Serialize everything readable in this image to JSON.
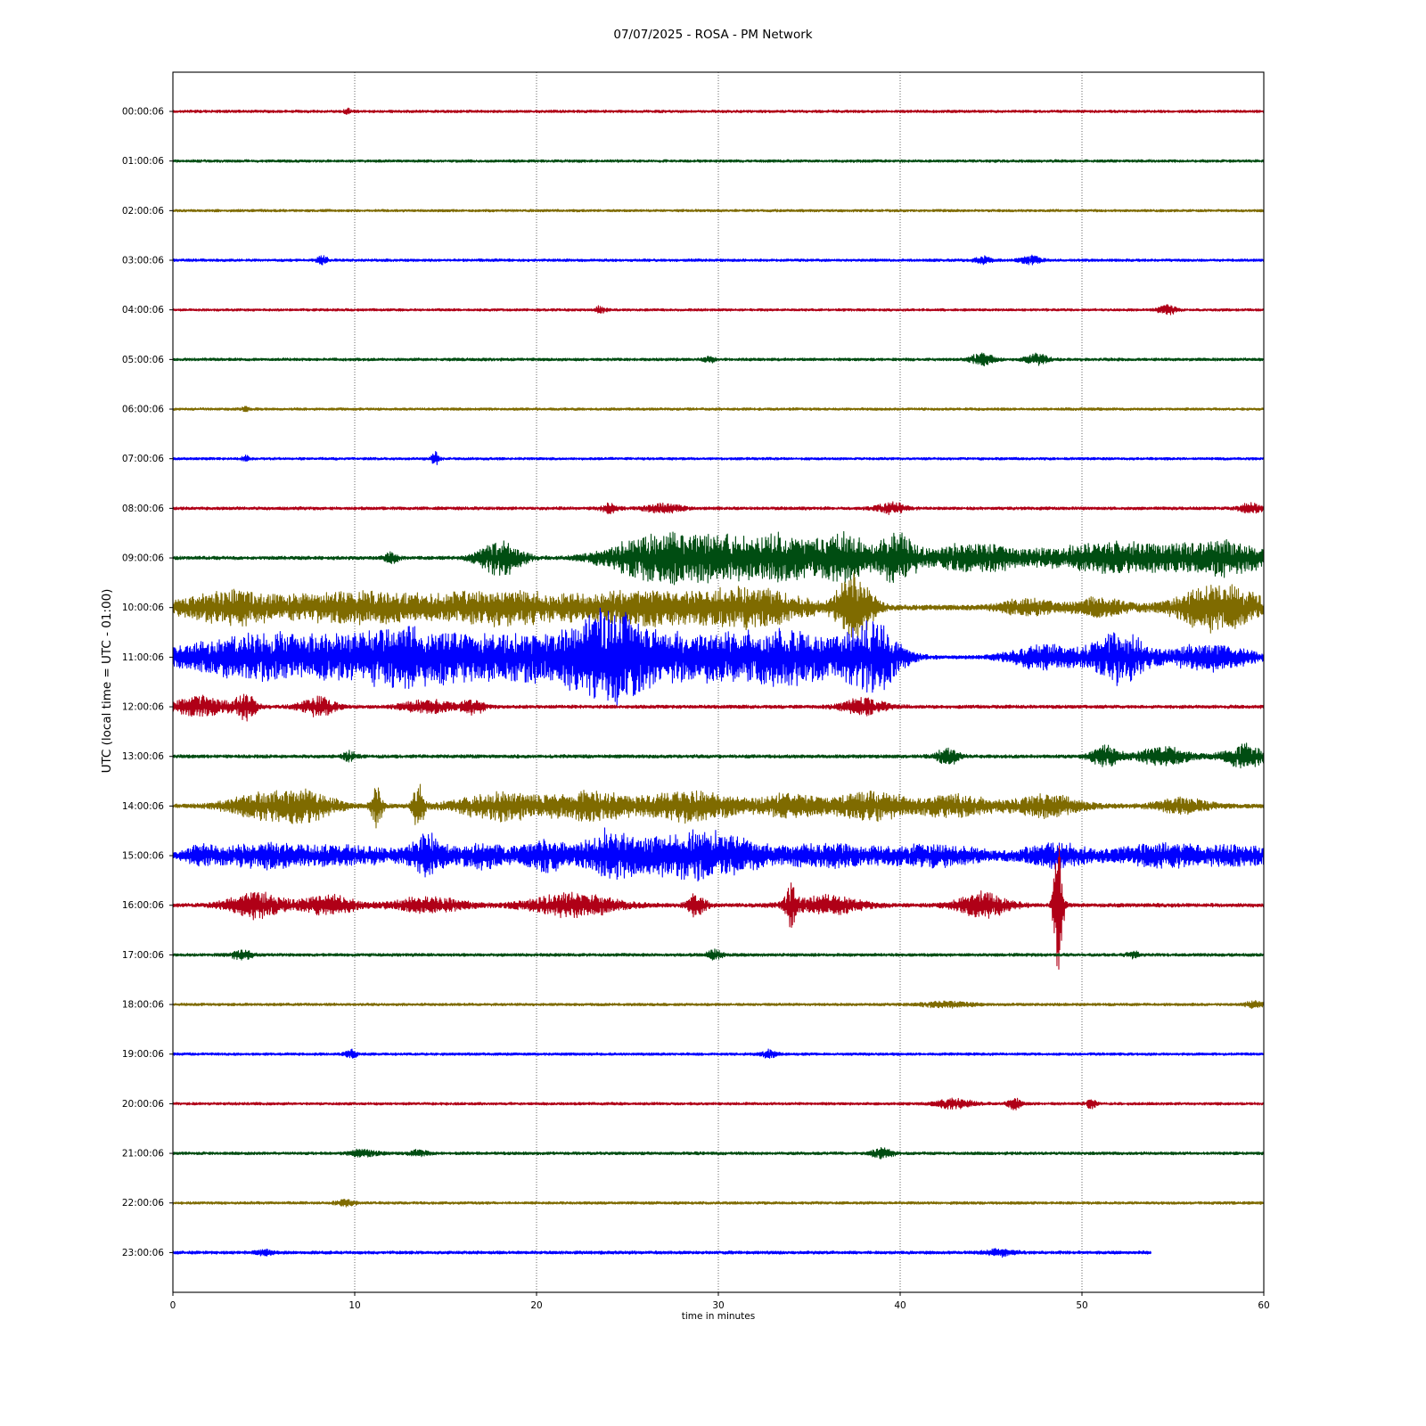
{
  "chart_data": {
    "type": "line",
    "chart_kind": "helicorder",
    "title": "07/07/2025 - ROSA - PM Network",
    "xlabel": "time in minutes",
    "ylabel": "UTC (local time = UTC - 01:00)",
    "xlim": [
      0,
      60
    ],
    "x_ticks": [
      "0",
      "10",
      "20",
      "30",
      "40",
      "50",
      "60"
    ],
    "grid": "vertical dotted at every 10 minutes",
    "trace_colors": [
      "#b00017",
      "#004d12",
      "#7f6b00",
      "#0000ff"
    ],
    "traces": [
      {
        "label": "00:00:06",
        "color": "#b00017",
        "end_minute": 60,
        "noise": 0.16,
        "bursts": [
          {
            "t": 9.6,
            "amp": 0.3,
            "w": 0.2
          }
        ]
      },
      {
        "label": "01:00:06",
        "color": "#004d12",
        "end_minute": 60,
        "noise": 0.16,
        "bursts": []
      },
      {
        "label": "02:00:06",
        "color": "#7f6b00",
        "end_minute": 60,
        "noise": 0.15,
        "bursts": []
      },
      {
        "label": "03:00:06",
        "color": "#0000ff",
        "end_minute": 60,
        "noise": 0.16,
        "bursts": [
          {
            "t": 8.2,
            "amp": 0.5,
            "w": 0.3
          },
          {
            "t": 44.5,
            "amp": 0.4,
            "w": 0.5
          },
          {
            "t": 47.2,
            "amp": 0.45,
            "w": 0.6
          }
        ]
      },
      {
        "label": "04:00:06",
        "color": "#b00017",
        "end_minute": 60,
        "noise": 0.15,
        "bursts": [
          {
            "t": 23.5,
            "amp": 0.35,
            "w": 0.3
          },
          {
            "t": 54.7,
            "amp": 0.55,
            "w": 0.5
          }
        ]
      },
      {
        "label": "05:00:06",
        "color": "#004d12",
        "end_minute": 60,
        "noise": 0.17,
        "bursts": [
          {
            "t": 44.5,
            "amp": 0.7,
            "w": 0.6
          },
          {
            "t": 47.5,
            "amp": 0.6,
            "w": 0.6
          },
          {
            "t": 29.5,
            "amp": 0.3,
            "w": 0.3
          }
        ]
      },
      {
        "label": "06:00:06",
        "color": "#7f6b00",
        "end_minute": 60,
        "noise": 0.15,
        "bursts": [
          {
            "t": 4.0,
            "amp": 0.3,
            "w": 0.2
          }
        ]
      },
      {
        "label": "07:00:06",
        "color": "#0000ff",
        "end_minute": 60,
        "noise": 0.15,
        "bursts": [
          {
            "t": 14.4,
            "amp": 0.9,
            "w": 0.2
          },
          {
            "t": 4.0,
            "amp": 0.35,
            "w": 0.2
          }
        ]
      },
      {
        "label": "08:00:06",
        "color": "#b00017",
        "end_minute": 60,
        "noise": 0.18,
        "bursts": [
          {
            "t": 24.0,
            "amp": 0.5,
            "w": 0.5
          },
          {
            "t": 27.0,
            "amp": 0.5,
            "w": 1.0
          },
          {
            "t": 39.5,
            "amp": 0.6,
            "w": 0.8
          },
          {
            "t": 59.3,
            "amp": 0.6,
            "w": 0.6
          }
        ]
      },
      {
        "label": "09:00:06",
        "color": "#004d12",
        "end_minute": 60,
        "noise": 0.2,
        "bursts": [
          {
            "t": 12.0,
            "amp": 0.6,
            "w": 0.4
          },
          {
            "t": 18.0,
            "amp": 2.0,
            "w": 1.2
          },
          {
            "t": 26.0,
            "amp": 1.8,
            "w": 2.5
          },
          {
            "t": 30.0,
            "amp": 2.6,
            "w": 3.5
          },
          {
            "t": 34.0,
            "amp": 1.8,
            "w": 2.0
          },
          {
            "t": 37.0,
            "amp": 2.6,
            "w": 1.5
          },
          {
            "t": 39.8,
            "amp": 3.0,
            "w": 1.0
          },
          {
            "t": 44.0,
            "amp": 1.6,
            "w": 3.0
          },
          {
            "t": 52.0,
            "amp": 1.8,
            "w": 4.0
          },
          {
            "t": 58.0,
            "amp": 1.8,
            "w": 2.5
          }
        ]
      },
      {
        "label": "10:00:06",
        "color": "#7f6b00",
        "end_minute": 60,
        "noise": 0.3,
        "bursts": [
          {
            "t": 3.0,
            "amp": 1.8,
            "w": 3.0
          },
          {
            "t": 10.0,
            "amp": 1.8,
            "w": 4.0
          },
          {
            "t": 18.0,
            "amp": 1.8,
            "w": 4.0
          },
          {
            "t": 26.0,
            "amp": 1.8,
            "w": 4.0
          },
          {
            "t": 32.0,
            "amp": 2.0,
            "w": 3.0
          },
          {
            "t": 37.5,
            "amp": 4.0,
            "w": 1.0
          },
          {
            "t": 47.0,
            "amp": 0.9,
            "w": 1.5
          },
          {
            "t": 51.0,
            "amp": 1.0,
            "w": 1.5
          },
          {
            "t": 57.5,
            "amp": 2.6,
            "w": 2.5
          }
        ]
      },
      {
        "label": "11:00:06",
        "color": "#0000ff",
        "end_minute": 60,
        "noise": 0.2,
        "bursts": [
          {
            "t": 5.0,
            "amp": 2.6,
            "w": 5.0
          },
          {
            "t": 13.0,
            "amp": 3.2,
            "w": 4.0
          },
          {
            "t": 20.0,
            "amp": 2.6,
            "w": 4.0
          },
          {
            "t": 24.0,
            "amp": 3.4,
            "w": 2.0
          },
          {
            "t": 28.0,
            "amp": 2.6,
            "w": 4.0
          },
          {
            "t": 34.0,
            "amp": 2.8,
            "w": 3.5
          },
          {
            "t": 38.5,
            "amp": 3.8,
            "w": 1.5
          },
          {
            "t": 48.0,
            "amp": 1.4,
            "w": 2.0
          },
          {
            "t": 52.0,
            "amp": 3.2,
            "w": 1.5
          },
          {
            "t": 57.0,
            "amp": 1.5,
            "w": 2.5
          }
        ]
      },
      {
        "label": "12:00:06",
        "color": "#b00017",
        "end_minute": 60,
        "noise": 0.2,
        "bursts": [
          {
            "t": 1.5,
            "amp": 1.2,
            "w": 1.5
          },
          {
            "t": 4.0,
            "amp": 1.4,
            "w": 0.6
          },
          {
            "t": 8.0,
            "amp": 1.1,
            "w": 1.0
          },
          {
            "t": 14.0,
            "amp": 0.7,
            "w": 1.5
          },
          {
            "t": 16.5,
            "amp": 0.8,
            "w": 0.6
          },
          {
            "t": 38.0,
            "amp": 1.0,
            "w": 1.2
          }
        ]
      },
      {
        "label": "13:00:06",
        "color": "#004d12",
        "end_minute": 60,
        "noise": 0.2,
        "bursts": [
          {
            "t": 9.7,
            "amp": 0.5,
            "w": 0.4
          },
          {
            "t": 42.6,
            "amp": 1.0,
            "w": 0.6
          },
          {
            "t": 51.3,
            "amp": 1.2,
            "w": 0.8
          },
          {
            "t": 54.5,
            "amp": 1.0,
            "w": 1.5
          },
          {
            "t": 59.0,
            "amp": 1.3,
            "w": 1.2
          }
        ]
      },
      {
        "label": "14:00:06",
        "color": "#7f6b00",
        "end_minute": 60,
        "noise": 0.25,
        "bursts": [
          {
            "t": 5.0,
            "amp": 1.4,
            "w": 2.0
          },
          {
            "t": 7.5,
            "amp": 1.5,
            "w": 1.5
          },
          {
            "t": 11.2,
            "amp": 2.4,
            "w": 0.3
          },
          {
            "t": 13.5,
            "amp": 2.8,
            "w": 0.3
          },
          {
            "t": 18.0,
            "amp": 1.5,
            "w": 2.5
          },
          {
            "t": 23.0,
            "amp": 1.5,
            "w": 2.5
          },
          {
            "t": 28.5,
            "amp": 1.8,
            "w": 2.5
          },
          {
            "t": 34.0,
            "amp": 1.3,
            "w": 2.0
          },
          {
            "t": 38.5,
            "amp": 1.7,
            "w": 2.0
          },
          {
            "t": 43.0,
            "amp": 1.3,
            "w": 2.0
          },
          {
            "t": 48.0,
            "amp": 1.2,
            "w": 2.0
          },
          {
            "t": 55.5,
            "amp": 0.8,
            "w": 1.5
          }
        ]
      },
      {
        "label": "15:00:06",
        "color": "#0000ff",
        "end_minute": 60,
        "noise": 0.22,
        "bursts": [
          {
            "t": 1.5,
            "amp": 0.8,
            "w": 1.0
          },
          {
            "t": 5.0,
            "amp": 1.3,
            "w": 3.0
          },
          {
            "t": 10.0,
            "amp": 1.0,
            "w": 3.0
          },
          {
            "t": 14.0,
            "amp": 2.3,
            "w": 1.0
          },
          {
            "t": 17.0,
            "amp": 1.5,
            "w": 1.5
          },
          {
            "t": 20.5,
            "amp": 1.8,
            "w": 1.5
          },
          {
            "t": 24.0,
            "amp": 2.8,
            "w": 1.5
          },
          {
            "t": 28.0,
            "amp": 2.6,
            "w": 2.5
          },
          {
            "t": 31.0,
            "amp": 1.5,
            "w": 2.0
          },
          {
            "t": 36.0,
            "amp": 1.3,
            "w": 3.0
          },
          {
            "t": 42.0,
            "amp": 1.2,
            "w": 3.0
          },
          {
            "t": 48.5,
            "amp": 1.3,
            "w": 2.0
          },
          {
            "t": 54.5,
            "amp": 1.3,
            "w": 3.0
          },
          {
            "t": 59.0,
            "amp": 1.0,
            "w": 2.0
          }
        ]
      },
      {
        "label": "16:00:06",
        "color": "#b00017",
        "end_minute": 60,
        "noise": 0.22,
        "bursts": [
          {
            "t": 4.5,
            "amp": 1.6,
            "w": 1.5
          },
          {
            "t": 8.5,
            "amp": 1.2,
            "w": 1.5
          },
          {
            "t": 14.0,
            "amp": 0.9,
            "w": 2.0
          },
          {
            "t": 22.0,
            "amp": 1.3,
            "w": 2.5
          },
          {
            "t": 28.8,
            "amp": 1.3,
            "w": 0.5
          },
          {
            "t": 34.0,
            "amp": 2.5,
            "w": 0.3
          },
          {
            "t": 36.0,
            "amp": 1.0,
            "w": 2.0
          },
          {
            "t": 44.5,
            "amp": 1.4,
            "w": 1.5
          },
          {
            "t": 48.7,
            "amp": 9.2,
            "w": 0.25
          }
        ]
      },
      {
        "label": "17:00:06",
        "color": "#004d12",
        "end_minute": 60,
        "noise": 0.18,
        "bursts": [
          {
            "t": 3.8,
            "amp": 0.5,
            "w": 0.6
          },
          {
            "t": 29.8,
            "amp": 0.55,
            "w": 0.4
          },
          {
            "t": 52.8,
            "amp": 0.4,
            "w": 0.3
          }
        ]
      },
      {
        "label": "18:00:06",
        "color": "#7f6b00",
        "end_minute": 60,
        "noise": 0.16,
        "bursts": [
          {
            "t": 42.5,
            "amp": 0.3,
            "w": 1.5
          },
          {
            "t": 59.5,
            "amp": 0.35,
            "w": 0.5
          }
        ]
      },
      {
        "label": "19:00:06",
        "color": "#0000ff",
        "end_minute": 60,
        "noise": 0.16,
        "bursts": [
          {
            "t": 9.8,
            "amp": 0.45,
            "w": 0.3
          },
          {
            "t": 32.8,
            "amp": 0.4,
            "w": 0.4
          }
        ]
      },
      {
        "label": "20:00:06",
        "color": "#b00017",
        "end_minute": 60,
        "noise": 0.16,
        "bursts": [
          {
            "t": 43.0,
            "amp": 0.55,
            "w": 1.0
          },
          {
            "t": 46.3,
            "amp": 0.6,
            "w": 0.4
          },
          {
            "t": 50.5,
            "amp": 0.5,
            "w": 0.3
          }
        ]
      },
      {
        "label": "21:00:06",
        "color": "#004d12",
        "end_minute": 60,
        "noise": 0.17,
        "bursts": [
          {
            "t": 10.5,
            "amp": 0.4,
            "w": 0.8
          },
          {
            "t": 13.5,
            "amp": 0.35,
            "w": 0.5
          },
          {
            "t": 39.0,
            "amp": 0.55,
            "w": 0.6
          }
        ]
      },
      {
        "label": "22:00:06",
        "color": "#7f6b00",
        "end_minute": 60,
        "noise": 0.16,
        "bursts": [
          {
            "t": 9.5,
            "amp": 0.35,
            "w": 0.5
          }
        ]
      },
      {
        "label": "23:00:06",
        "color": "#0000ff",
        "end_minute": 53.8,
        "noise": 0.18,
        "bursts": [
          {
            "t": 5.0,
            "amp": 0.3,
            "w": 0.5
          },
          {
            "t": 45.5,
            "amp": 0.35,
            "w": 0.8
          }
        ]
      }
    ]
  }
}
